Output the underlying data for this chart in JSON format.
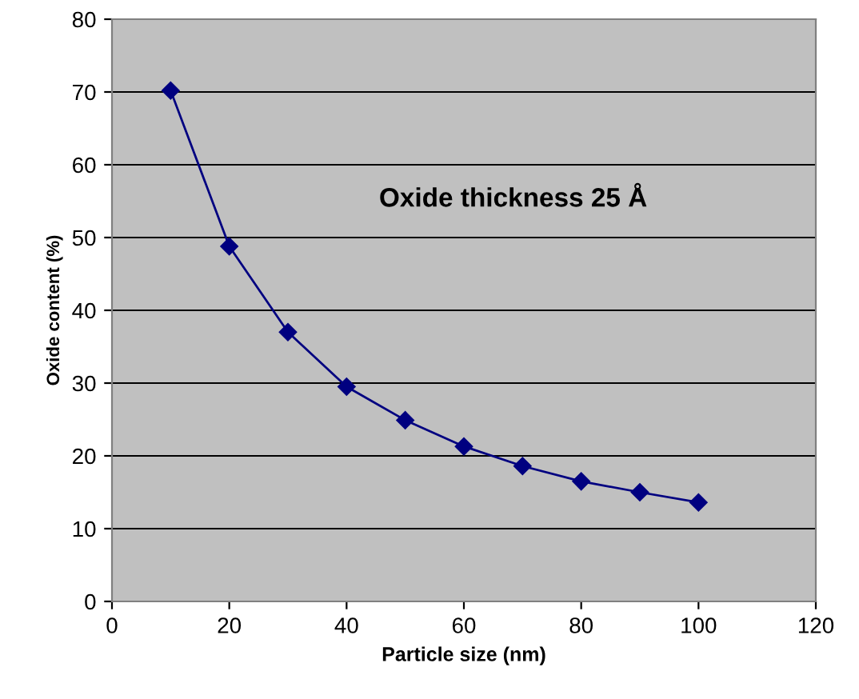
{
  "chart_data": {
    "type": "line",
    "xlabel": "Particle size (nm)",
    "ylabel": "Oxide content (%)",
    "annotations": [
      "Oxide thickness 25 Å"
    ],
    "x": [
      10,
      20,
      30,
      40,
      50,
      60,
      70,
      80,
      90,
      100
    ],
    "series": [
      {
        "color": "#000080",
        "values": [
          70.2,
          48.8,
          37.0,
          29.5,
          24.9,
          21.3,
          18.6,
          16.5,
          15.0,
          13.6
        ]
      }
    ],
    "xlim": [
      0,
      120
    ],
    "xticks": [
      0,
      20,
      40,
      60,
      80,
      100,
      120
    ],
    "ylim": [
      0,
      80
    ],
    "yticks": [
      0,
      10,
      20,
      30,
      40,
      50,
      60,
      70,
      80
    ],
    "grid": "y",
    "legend": false,
    "marker": "diamond",
    "line_style": "solid"
  }
}
